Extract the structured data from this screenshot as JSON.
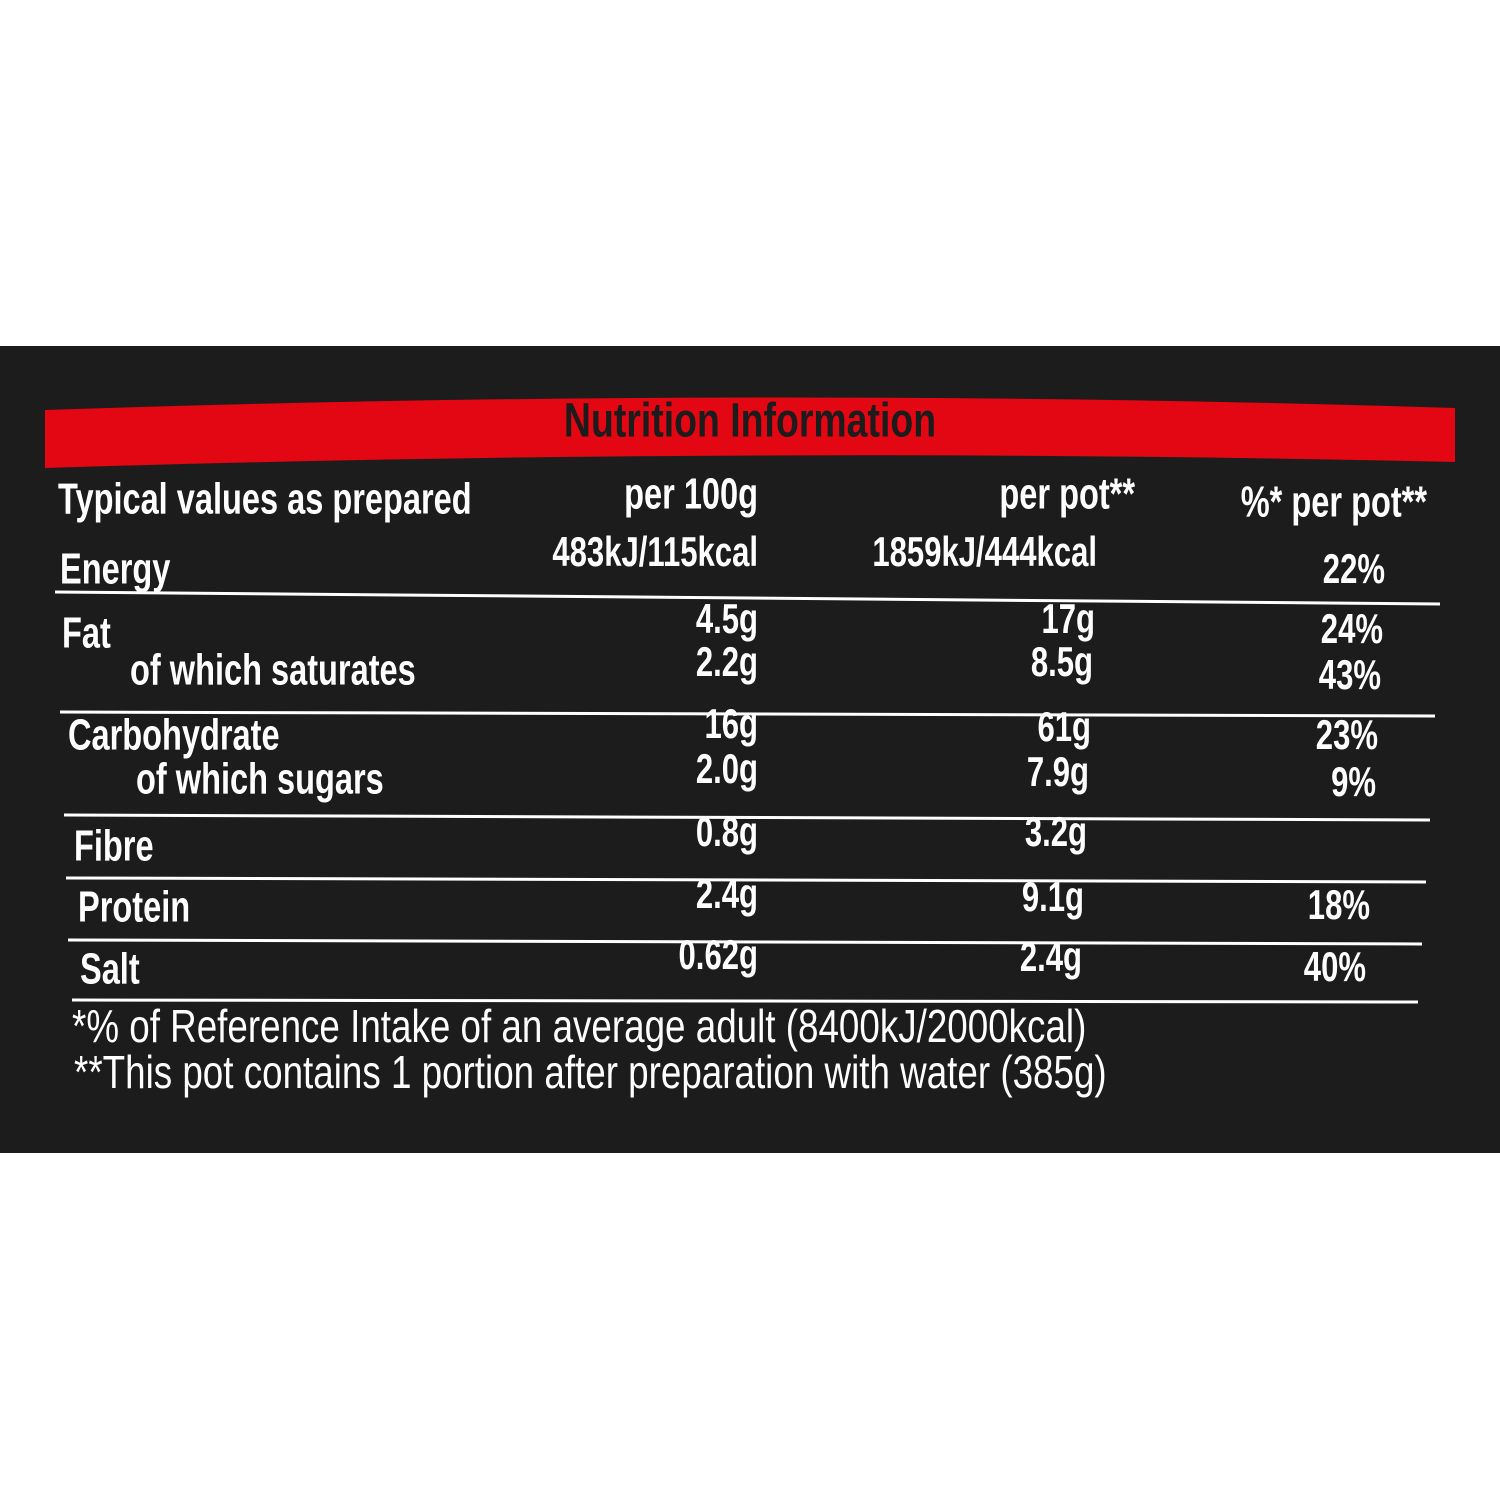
{
  "title": "Nutrition Information",
  "table": {
    "header": [
      "Typical values as prepared",
      "per 100g",
      "per pot**",
      "%* per pot**"
    ],
    "rows": [
      [
        "Energy",
        "483kJ/115kcal",
        "1859kJ/444kcal",
        "22%"
      ],
      [
        "Fat",
        "4.5g",
        "17g",
        "24%"
      ],
      [
        "of which saturates",
        "2.2g",
        "8.5g",
        "43%"
      ],
      [
        "Carbohydrate",
        "16g",
        "61g",
        "23%"
      ],
      [
        "of which sugars",
        "2.0g",
        "7.9g",
        "9%"
      ],
      [
        "Fibre",
        "0.8g",
        "3.2g"
      ],
      [
        "Protein",
        "2.4g",
        "9.1g",
        "18%"
      ],
      [
        "Salt",
        "0.62g",
        "2.4g",
        "40%"
      ]
    ]
  },
  "footnotes": [
    "*% of Reference Intake of an average adult (8400kJ/2000kcal)",
    "**This pot contains 1 portion after preparation with water (385g)"
  ]
}
